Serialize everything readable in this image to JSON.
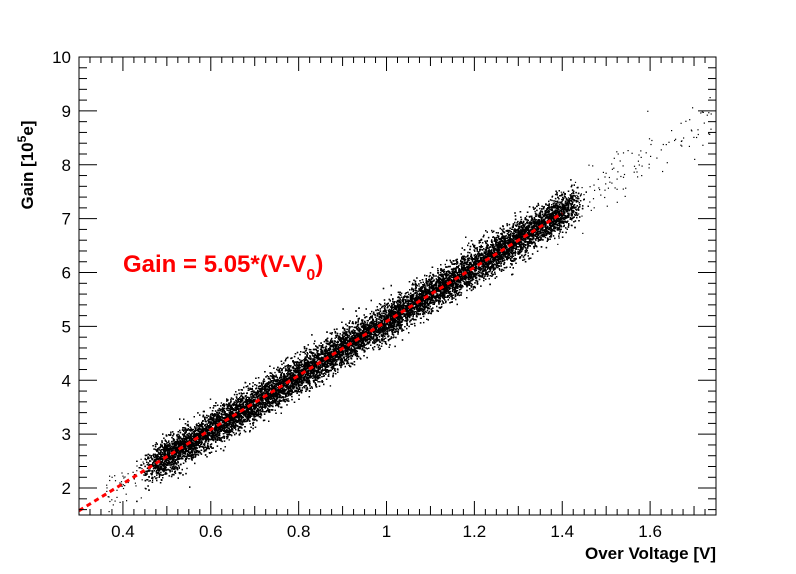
{
  "chart_data": {
    "type": "scatter",
    "title": "",
    "xlabel": "Over Voltage [V]",
    "ylabel": {
      "main": "Gain [10",
      "sup": "5",
      "tail": "e]"
    },
    "xlim": [
      0.3,
      1.75
    ],
    "ylim": [
      1.5,
      10
    ],
    "x_ticks": [
      0.4,
      0.6,
      0.8,
      1.0,
      1.2,
      1.4,
      1.6
    ],
    "x_tick_labels": [
      "0.4",
      "0.6",
      "0.8",
      "1",
      "1.2",
      "1.4",
      "1.6"
    ],
    "y_ticks": [
      2,
      3,
      4,
      5,
      6,
      7,
      8,
      9,
      10
    ],
    "y_tick_labels": [
      "2",
      "3",
      "4",
      "5",
      "6",
      "7",
      "8",
      "9",
      "10"
    ],
    "grid": false,
    "point_color": "#000000",
    "fit_color": "#ff0000",
    "scatter_band": {
      "x_range": [
        0.47,
        1.42
      ],
      "relation": "gain = 5.05 * (V - V0)",
      "slope": 5.05,
      "v0": -0.013,
      "sparse_outliers_x_max": 1.74
    },
    "fit_line": {
      "x": [
        0.3,
        1.4
      ],
      "y": [
        1.58,
        7.1
      ]
    },
    "annotation": {
      "prefix": "Gain = 5.05*(V-V",
      "sub": "0",
      "suffix": ")",
      "color": "#ff0000"
    }
  }
}
